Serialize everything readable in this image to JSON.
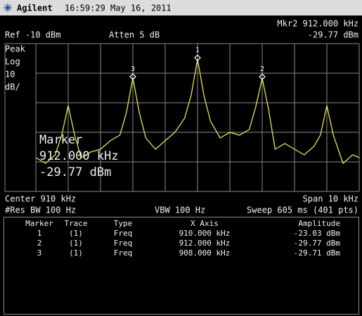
{
  "header": {
    "brand": "Agilent",
    "datetime": "16:59:29  May 16, 2011"
  },
  "status": {
    "marker_readout": "Mkr2  912.000 kHz",
    "ref": "Ref -10 dBm",
    "atten": "Atten 5 dB",
    "marker_amplitude": "-29.77 dBm",
    "scale_lines": [
      "Peak",
      "Log",
      "10",
      "dB/"
    ]
  },
  "overlay": [
    "Marker",
    "912.000 kHz",
    "-29.77 dBm"
  ],
  "footer": {
    "center": "Center 910 kHz",
    "span": "Span 10 kHz",
    "res_bw": "#Res BW 100 Hz",
    "vbw": "VBW 100 Hz",
    "sweep": "Sweep 605 ms (401 pts)"
  },
  "chart_data": {
    "type": "line",
    "xlim": [
      905,
      915
    ],
    "ylim": [
      -70,
      -17.5
    ],
    "x": [
      905.0,
      905.3,
      905.6,
      905.8,
      906.0,
      906.2,
      906.4,
      906.7,
      907.0,
      907.3,
      907.6,
      907.8,
      908.0,
      908.2,
      908.4,
      908.7,
      909.0,
      909.3,
      909.6,
      909.8,
      910.0,
      910.2,
      910.4,
      910.7,
      911.0,
      911.3,
      911.6,
      911.8,
      912.0,
      912.2,
      912.4,
      912.7,
      913.0,
      913.3,
      913.6,
      913.8,
      914.0,
      914.2,
      914.5,
      914.8,
      915.0
    ],
    "series": [
      {
        "color": "#e8e84a",
        "values": [
          -58,
          -60,
          -57,
          -50,
          -39.5,
          -50,
          -58,
          -56,
          -55,
          -52,
          -50,
          -42,
          -29.71,
          -42,
          -51,
          -55,
          -52,
          -49,
          -44,
          -36,
          -23.03,
          -36,
          -45,
          -51,
          -49,
          -50,
          -48,
          -40,
          -29.77,
          -41,
          -55,
          -53,
          -55,
          -57,
          -54,
          -50,
          -39.5,
          -50,
          -60,
          -57,
          -58
        ]
      }
    ],
    "marker_indices": [
      20,
      28,
      12
    ]
  },
  "table": {
    "columns": [
      "Marker",
      "Trace",
      "Type",
      "X Axis",
      "Amplitude"
    ],
    "rows": [
      [
        "1",
        "(1)",
        "Freq",
        "910.000 kHz",
        "-23.03 dBm"
      ],
      [
        "2",
        "(1)",
        "Freq",
        "912.000 kHz",
        "-29.77 dBm"
      ],
      [
        "3",
        "(1)",
        "Freq",
        "908.000 kHz",
        "-29.71 dBm"
      ]
    ]
  }
}
